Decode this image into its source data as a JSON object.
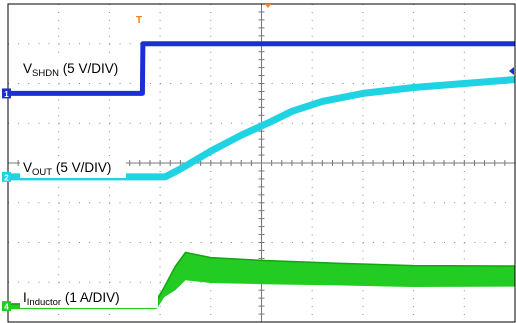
{
  "chart_data": {
    "type": "line",
    "title": "",
    "grid": true,
    "grid_divisions": {
      "horizontal": 10,
      "vertical": 8
    },
    "series": [
      {
        "channel": "1",
        "base": "V",
        "subscript": "SHDN",
        "scale": " (5 V/DIV)",
        "color": "#1a2fd6",
        "thickness": 5,
        "x": [
          0,
          2.65,
          2.66,
          10
        ],
        "y": [
          -1.75,
          -1.75,
          -3.0,
          -3.0
        ]
      },
      {
        "channel": "2",
        "base": "V",
        "subscript": "OUT",
        "scale": " (5 V/DIV)",
        "color": "#1fd3e3",
        "thickness": 7,
        "x": [
          0,
          3.1,
          3.4,
          4.0,
          4.6,
          5.2,
          5.6,
          6.2,
          7.0,
          8.0,
          9.0,
          10
        ],
        "y": [
          0.35,
          0.35,
          0.15,
          -0.3,
          -0.7,
          -1.05,
          -1.3,
          -1.55,
          -1.75,
          -1.9,
          -2.0,
          -2.1
        ]
      },
      {
        "channel": "4",
        "base": "I",
        "subscript": "Inductor",
        "scale": " (1 A/DIV)",
        "color": "#22cc22",
        "thickness": 6,
        "x": [
          0,
          2.9,
          3.05,
          3.3,
          3.5,
          4.0,
          5.0,
          6.5,
          8.0,
          10
        ],
        "y": [
          3.6,
          3.6,
          3.3,
          2.9,
          2.6,
          2.7,
          2.75,
          2.8,
          2.85,
          2.85
        ],
        "ripple_band": [
          0.05,
          0.05,
          0.1,
          0.3,
          0.35,
          0.32,
          0.3,
          0.28,
          0.27,
          0.26
        ]
      }
    ],
    "markers": {
      "trigger": "T"
    }
  }
}
